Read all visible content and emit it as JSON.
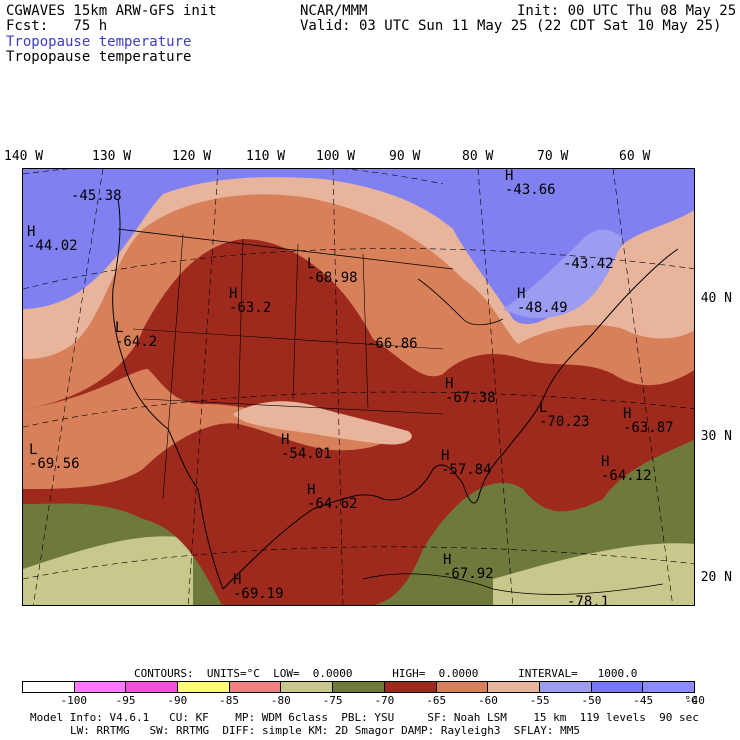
{
  "header": {
    "model": "CGWAVES 15km ARW-GFS init",
    "org": "NCAR/MMM",
    "init": "Init: 00 UTC Thu 08 May 25",
    "fcst": "Fcst:   75 h",
    "valid": "Valid: 03 UTC Sun 11 May 25 (22 CDT Sat 10 May 25)",
    "title_blue": "Tropopause temperature",
    "title_black": "Tropopause temperature"
  },
  "lon_labels": [
    "140 W",
    "130 W",
    "120 W",
    "110 W",
    "100 W",
    "90 W",
    "80 W",
    "70 W",
    "60 W"
  ],
  "lat_labels": [
    "40 N",
    "30 N",
    "20 N"
  ],
  "map_labels": [
    {
      "hl": "",
      "val": "-45.38"
    },
    {
      "hl": "H",
      "val": "-43.66"
    },
    {
      "hl": "H",
      "val": "-44.02"
    },
    {
      "hl": "L",
      "val": "-68.98"
    },
    {
      "hl": "H",
      "val": "-63.2"
    },
    {
      "hl": "",
      "val": "-43.42"
    },
    {
      "hl": "H",
      "val": "-48.49"
    },
    {
      "hl": "L",
      "val": "-64.2"
    },
    {
      "hl": "",
      "val": "-66.86"
    },
    {
      "hl": "H",
      "val": "-67.38"
    },
    {
      "hl": "L",
      "val": "-70.23"
    },
    {
      "hl": "H",
      "val": "-63.87"
    },
    {
      "hl": "L",
      "val": "-69.56"
    },
    {
      "hl": "H",
      "val": "-54.01"
    },
    {
      "hl": "H",
      "val": "-57.84"
    },
    {
      "hl": "H",
      "val": "-64.12"
    },
    {
      "hl": "H",
      "val": "-64.62"
    },
    {
      "hl": "H",
      "val": "-67.92"
    },
    {
      "hl": "H",
      "val": "-69.19"
    },
    {
      "hl": "",
      "val": "-78.1"
    }
  ],
  "contours": {
    "line": "CONTOURS:  UNITS=°C  LOW=  0.0000      HIGH=  0.0000      INTERVAL=   1000.0"
  },
  "colorbar": {
    "colors": [
      "#ffffff",
      "#ff78ff",
      "#f050dc",
      "#ffff78",
      "#f08080",
      "#c8c88c",
      "#6e7a3c",
      "#9e2a1e",
      "#d8805a",
      "#e8b49c",
      "#9c9cf0",
      "#7878ff",
      "#8c8cff"
    ],
    "ticks": [
      "-100",
      "-95",
      "-90",
      "-85",
      "-80",
      "-75",
      "-70",
      "-65",
      "-60",
      "-55",
      "-50",
      "-45",
      "-40",
      "°C"
    ]
  },
  "footer": {
    "line1": "Model Info: V4.6.1   CU: KF    MP: WDM 6class  PBL: YSU     SF: Noah LSM    15 km  119 levels  90 sec",
    "line2": "LW: RRTMG   SW: RRTMG  DIFF: simple KM: 2D Smagor DAMP: Rayleigh3  SFLAY: MM5"
  },
  "fill_colors": {
    "blue": "#8080f0",
    "lavender": "#9c9cf0",
    "peach": "#e8b49c",
    "orange": "#d8805a",
    "red": "#9e2a1e",
    "olive": "#6e7a3c",
    "khaki": "#c8c88c"
  }
}
